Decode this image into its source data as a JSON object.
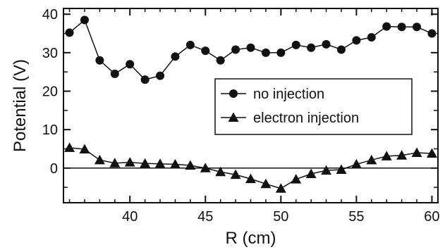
{
  "chart_data": {
    "type": "line",
    "xlabel": "R (cm)",
    "ylabel": "Potential (V)",
    "xlim": [
      35.6,
      60.4
    ],
    "ylim": [
      -9,
      41.5
    ],
    "xticks": [
      40,
      45,
      50,
      55,
      60
    ],
    "yticks": [
      0,
      10,
      20,
      30,
      40
    ],
    "grid": false,
    "reference_line_y": 0,
    "legend_placement": "center-right",
    "x": [
      36,
      37,
      38,
      39,
      40,
      41,
      42,
      43,
      44,
      45,
      46,
      47,
      48,
      49,
      50,
      51,
      52,
      53,
      54,
      55,
      56,
      57,
      58,
      59,
      60
    ],
    "series": [
      {
        "name": "no injection",
        "marker": "circle",
        "values": [
          35.2,
          38.5,
          28.0,
          24.5,
          27.0,
          23.0,
          24.0,
          29.0,
          32.0,
          30.5,
          28.0,
          30.8,
          31.3,
          30.0,
          30.0,
          32.0,
          31.3,
          32.2,
          30.8,
          33.2,
          34.0,
          36.8,
          36.7,
          36.7,
          35.0
        ]
      },
      {
        "name": "electron injection",
        "marker": "triangle",
        "values": [
          5.3,
          4.9,
          2.1,
          1.3,
          1.5,
          1.2,
          1.1,
          1.0,
          0.7,
          0.0,
          -1.0,
          -1.7,
          -2.8,
          -4.1,
          -5.3,
          -2.9,
          -1.5,
          -0.6,
          -0.4,
          1.0,
          2.1,
          3.1,
          3.3,
          4.0,
          3.8
        ]
      }
    ],
    "colors": {
      "line": "#111111",
      "marker": "#111111",
      "frame": "#111111"
    }
  }
}
